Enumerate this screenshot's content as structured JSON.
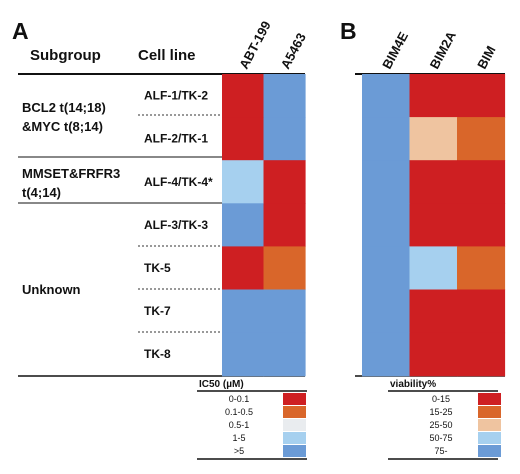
{
  "panel_labels": [
    "A",
    "B"
  ],
  "table_headers": {
    "subgroup": "Subgroup",
    "cell_line": "Cell line"
  },
  "subgroups": [
    {
      "lines": [
        "BCL2 t(14;18)",
        "&MYC t(8;14)"
      ]
    },
    {
      "lines": [
        "MMSET&FRFR3",
        "t(4;14)"
      ]
    },
    {
      "lines": [
        "Unknown"
      ]
    }
  ],
  "chart_data": [
    {
      "type": "heatmap",
      "panel": "A",
      "columns": [
        "ABT-199",
        "A5463"
      ],
      "rows": [
        "ALF-1/TK-2",
        "ALF-2/TK-1",
        "ALF-4/TK-4*",
        "ALF-3/TK-3",
        "TK-5",
        "TK-7",
        "TK-8"
      ],
      "values": [
        [
          "0-0.1",
          ">5"
        ],
        [
          "0-0.1",
          ">5"
        ],
        [
          "1-5",
          "0-0.1"
        ],
        [
          ">5",
          "0-0.1"
        ],
        [
          "0-0.1",
          "0.1-0.5"
        ],
        [
          ">5",
          ">5"
        ],
        [
          ">5",
          ">5"
        ]
      ],
      "legend": {
        "title": "IC50 (µM)",
        "bins": [
          {
            "label": "0-0.1",
            "color": "#ce1f22"
          },
          {
            "label": "0.1-0.5",
            "color": "#d9662a"
          },
          {
            "label": "0.5-1",
            "color": "#e9ecef"
          },
          {
            "label": "1-5",
            "color": "#a6d0ef"
          },
          {
            "label": ">5",
            "color": "#6b9bd6"
          }
        ]
      }
    },
    {
      "type": "heatmap",
      "panel": "B",
      "columns": [
        "BIM4E",
        "BIM2A",
        "BIM"
      ],
      "rows": [
        "ALF-1/TK-2",
        "ALF-2/TK-1",
        "ALF-4/TK-4*",
        "ALF-3/TK-3",
        "TK-5",
        "TK-7",
        "TK-8"
      ],
      "values": [
        [
          "75-",
          "0-15",
          "0-15"
        ],
        [
          "75-",
          "25-50",
          "15-25"
        ],
        [
          "75-",
          "0-15",
          "0-15"
        ],
        [
          "75-",
          "0-15",
          "0-15"
        ],
        [
          "75-",
          "50-75",
          "15-25"
        ],
        [
          "75-",
          "0-15",
          "0-15"
        ],
        [
          "75-",
          "0-15",
          "0-15"
        ]
      ],
      "legend": {
        "title": "viability%",
        "bins": [
          {
            "label": "0-15",
            "color": "#ce1f22"
          },
          {
            "label": "15-25",
            "color": "#d9662a"
          },
          {
            "label": "25-50",
            "color": "#efc4a0"
          },
          {
            "label": "50-75",
            "color": "#a6d0ef"
          },
          {
            "label": "75-",
            "color": "#6b9bd6"
          }
        ]
      }
    }
  ]
}
